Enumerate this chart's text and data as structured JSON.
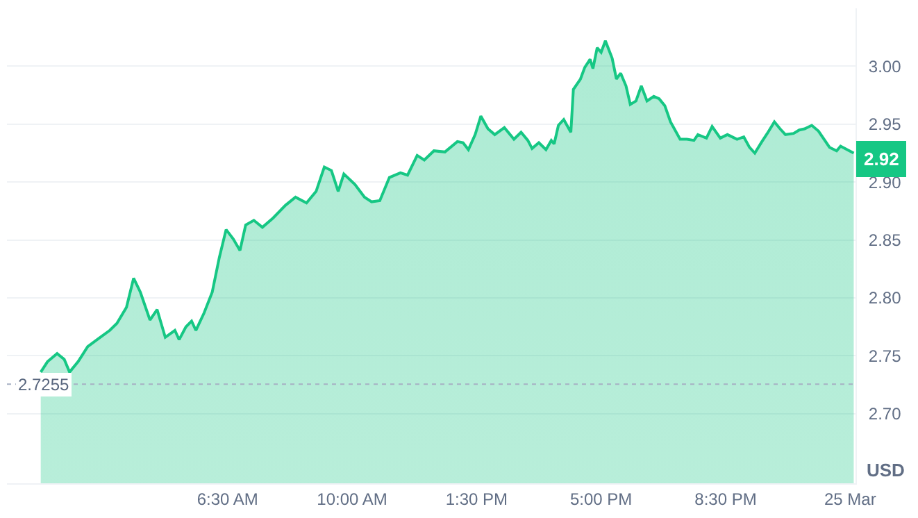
{
  "chart_data": {
    "type": "area",
    "x": [
      1.25,
      1.44,
      1.71,
      1.91,
      2.06,
      2.3,
      2.57,
      2.88,
      3.19,
      3.39,
      3.66,
      3.86,
      4.05,
      4.32,
      4.52,
      4.75,
      5.02,
      5.14,
      5.33,
      5.49,
      5.61,
      5.84,
      6.07,
      6.27,
      6.46,
      6.66,
      6.85,
      7.01,
      7.24,
      7.48,
      7.78,
      8.13,
      8.41,
      8.72,
      8.99,
      9.22,
      9.42,
      9.61,
      9.77,
      10.08,
      10.35,
      10.55,
      10.78,
      11.05,
      11.36,
      11.56,
      11.83,
      12.03,
      12.3,
      12.61,
      12.96,
      13.12,
      13.27,
      13.46,
      13.62,
      13.82,
      14.01,
      14.28,
      14.55,
      14.75,
      14.94,
      15.06,
      15.25,
      15.45,
      15.6,
      15.68,
      15.8,
      15.95,
      16.15,
      16.22,
      16.42,
      16.54,
      16.69,
      16.77,
      16.89,
      17.0,
      17.12,
      17.31,
      17.43,
      17.55,
      17.7,
      17.82,
      17.98,
      18.13,
      18.29,
      18.48,
      18.63,
      18.79,
      18.95,
      19.22,
      19.41,
      19.61,
      19.72,
      19.96,
      20.12,
      20.35,
      20.55,
      20.82,
      21.01,
      21.17,
      21.32,
      21.52,
      21.67,
      21.87,
      22.03,
      22.18,
      22.41,
      22.57,
      22.72,
      22.92,
      23.11,
      23.42,
      23.62,
      23.73,
      23.85,
      24.1
    ],
    "series": [
      {
        "color": "#16c784",
        "values": [
          2.736,
          2.745,
          2.752,
          2.747,
          2.736,
          2.745,
          2.758,
          2.765,
          2.772,
          2.778,
          2.792,
          2.817,
          2.805,
          2.781,
          2.79,
          2.766,
          2.772,
          2.764,
          2.775,
          2.78,
          2.772,
          2.787,
          2.805,
          2.835,
          2.859,
          2.851,
          2.841,
          2.863,
          2.867,
          2.861,
          2.869,
          2.88,
          2.887,
          2.882,
          2.892,
          2.913,
          2.91,
          2.892,
          2.907,
          2.898,
          2.887,
          2.883,
          2.884,
          2.904,
          2.908,
          2.906,
          2.923,
          2.919,
          2.927,
          2.926,
          2.935,
          2.934,
          2.928,
          2.941,
          2.957,
          2.946,
          2.941,
          2.947,
          2.937,
          2.943,
          2.936,
          2.929,
          2.934,
          2.928,
          2.936,
          2.933,
          2.949,
          2.954,
          2.943,
          2.98,
          2.989,
          2.999,
          3.006,
          2.998,
          3.016,
          3.012,
          3.022,
          3.007,
          2.989,
          2.994,
          2.983,
          2.967,
          2.97,
          2.983,
          2.97,
          2.974,
          2.972,
          2.966,
          2.952,
          2.937,
          2.937,
          2.936,
          2.941,
          2.938,
          2.948,
          2.938,
          2.941,
          2.937,
          2.939,
          2.93,
          2.925,
          2.935,
          2.942,
          2.952,
          2.946,
          2.941,
          2.942,
          2.945,
          2.946,
          2.949,
          2.944,
          2.93,
          2.927,
          2.931,
          2.929,
          2.925
        ]
      }
    ],
    "xlim": [
      0.3,
      24.15
    ],
    "xticks": [
      {
        "value": 6.5,
        "label": "6:30 AM"
      },
      {
        "value": 10,
        "label": "10:00 AM"
      },
      {
        "value": 13.5,
        "label": "1:30 PM"
      },
      {
        "value": 17,
        "label": "5:00 PM"
      },
      {
        "value": 20.5,
        "label": "8:30 PM"
      },
      {
        "value": 24,
        "label": "25 Mar"
      }
    ],
    "ylim": [
      2.64,
      3.05
    ],
    "yticks": [
      {
        "value": 2.7,
        "label": "2.70"
      },
      {
        "value": 2.75,
        "label": "2.75"
      },
      {
        "value": 2.8,
        "label": "2.80"
      },
      {
        "value": 2.85,
        "label": "2.85"
      },
      {
        "value": 2.9,
        "label": "2.90"
      },
      {
        "value": 2.95,
        "label": "2.95"
      },
      {
        "value": 3.0,
        "label": "3.00"
      }
    ],
    "ylabel": "USD",
    "grid": "y",
    "ref_lines": [
      {
        "axis": "y",
        "value": 2.7255,
        "label": "2.7255",
        "color": "#a6b0c3",
        "line_style": "dotted"
      }
    ],
    "annotations": [
      {
        "text": "2.92",
        "x": 24.15,
        "y": 2.92
      }
    ]
  }
}
